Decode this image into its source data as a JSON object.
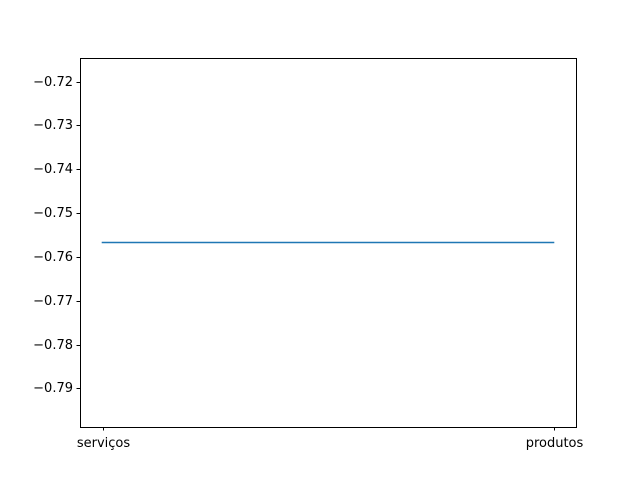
{
  "chart_data": {
    "type": "line",
    "title": "",
    "xlabel": "",
    "ylabel": "",
    "categories": [
      "serviços",
      "produtos"
    ],
    "series": [
      {
        "values": [
          -0.7567,
          -0.7567
        ],
        "color": "#1f77b4"
      }
    ],
    "ylim": [
      -0.7988,
      -0.7146
    ],
    "yticks": [
      -0.72,
      -0.73,
      -0.74,
      -0.75,
      -0.76,
      -0.77,
      -0.78,
      -0.79
    ],
    "ytick_labels": [
      "−0.72",
      "−0.73",
      "−0.74",
      "−0.75",
      "−0.76",
      "−0.77",
      "−0.78",
      "−0.79"
    ],
    "grid": false,
    "legend": "none"
  }
}
